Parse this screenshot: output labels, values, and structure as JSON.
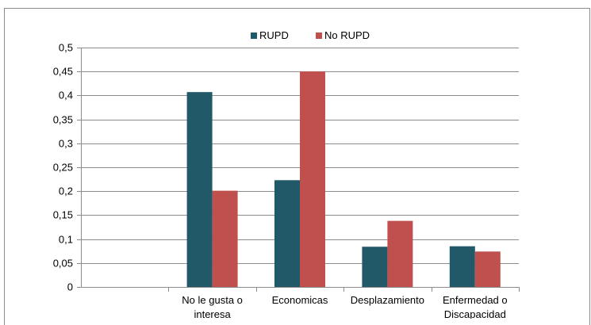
{
  "chart_data": {
    "type": "bar",
    "title": "",
    "xlabel": "",
    "ylabel": "",
    "categories": [
      "",
      "No le gusta o interesa",
      "Economicas",
      "Desplazamiento",
      "Enfermedad o Discapacidad"
    ],
    "category_lines": [
      [
        ""
      ],
      [
        "No le gusta o",
        "interesa"
      ],
      [
        "Economicas"
      ],
      [
        "Desplazamiento"
      ],
      [
        "Enfermedad o",
        "Discapacidad"
      ]
    ],
    "series": [
      {
        "name": "RUPD",
        "color": "#215968",
        "values": [
          0,
          0.407,
          0.223,
          0.084,
          0.085
        ]
      },
      {
        "name": "No RUPD",
        "color": "#c0504d",
        "values": [
          0,
          0.201,
          0.45,
          0.138,
          0.074
        ]
      }
    ],
    "ylim": [
      0,
      0.5
    ],
    "yticks": [
      0,
      0.05,
      0.1,
      0.15,
      0.2,
      0.25,
      0.3,
      0.35,
      0.4,
      0.45,
      0.5
    ],
    "ytick_labels": [
      "0",
      "0,05",
      "0,1",
      "0,15",
      "0,2",
      "0,25",
      "0,3",
      "0,35",
      "0,4",
      "0,45",
      "0,5"
    ],
    "grid": true,
    "legend_position": "top-center",
    "gridline_color": "#8c8c8c"
  }
}
